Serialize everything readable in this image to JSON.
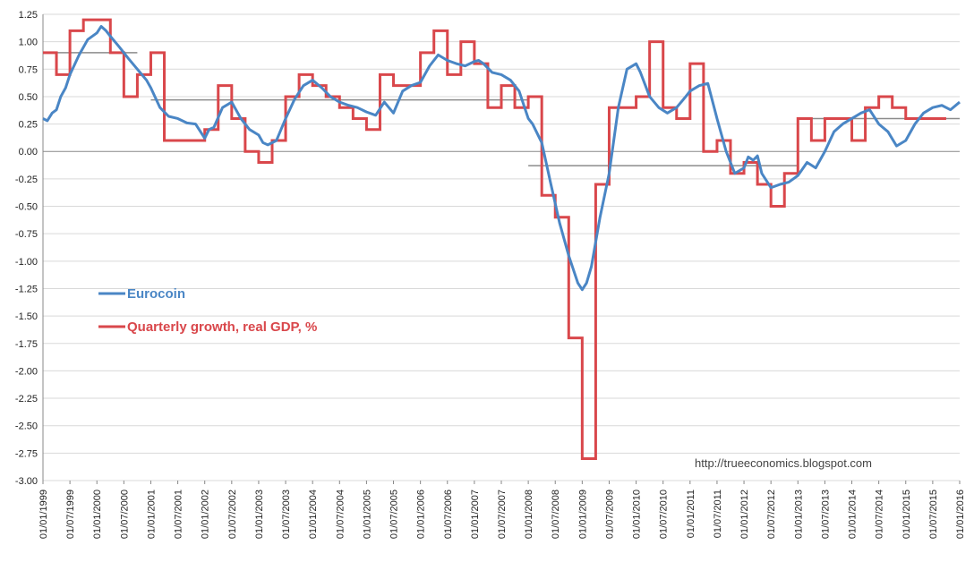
{
  "chart_data": {
    "type": "line",
    "title": "",
    "xlabel": "",
    "ylabel": "",
    "ylim": [
      -3.0,
      1.25
    ],
    "y_tick_step": 0.25,
    "x_range": [
      1999.0,
      2016.0
    ],
    "grid": "horizontal",
    "legend_position": "left-middle",
    "colors": {
      "eurocoin": "#4a86c5",
      "gdp": "#d9474b",
      "average": "#8c8c8c",
      "grid": "#d9d9d9"
    },
    "x_tick_labels": [
      "01/01/1999",
      "01/07/1999",
      "01/01/2000",
      "01/07/2000",
      "01/01/2001",
      "01/07/2001",
      "01/01/2002",
      "01/07/2002",
      "01/01/2003",
      "01/07/2003",
      "01/01/2004",
      "01/07/2004",
      "01/01/2005",
      "01/07/2005",
      "01/01/2006",
      "01/07/2006",
      "01/01/2007",
      "01/07/2007",
      "01/01/2008",
      "01/07/2008",
      "01/01/2009",
      "01/07/2009",
      "01/01/2010",
      "01/07/2010",
      "01/01/2011",
      "01/07/2011",
      "01/01/2012",
      "01/07/2012",
      "01/01/2013",
      "01/07/2013",
      "01/01/2014",
      "01/07/2014",
      "01/01/2015",
      "01/07/2015",
      "01/01/2016"
    ],
    "y_tick_labels": [
      "1.25",
      "1.00",
      "0.75",
      "0.50",
      "0.25",
      "0.00",
      "-0.25",
      "-0.50",
      "-0.75",
      "-1.00",
      "-1.25",
      "-1.50",
      "-1.75",
      "-2.00",
      "-2.25",
      "-2.50",
      "-2.75",
      "-3.00"
    ],
    "series": [
      {
        "name": "Eurocoin",
        "key": "eurocoin",
        "style": "line",
        "x": [
          1999.0,
          1999.08,
          1999.17,
          1999.25,
          1999.33,
          1999.42,
          1999.5,
          1999.67,
          1999.83,
          2000.0,
          2000.08,
          2000.17,
          2000.25,
          2000.42,
          2000.58,
          2000.75,
          2000.92,
          2001.0,
          2001.17,
          2001.33,
          2001.5,
          2001.67,
          2001.83,
          2002.0,
          2002.08,
          2002.17,
          2002.33,
          2002.5,
          2002.67,
          2002.83,
          2003.0,
          2003.08,
          2003.17,
          2003.33,
          2003.5,
          2003.67,
          2003.83,
          2004.0,
          2004.17,
          2004.33,
          2004.5,
          2004.67,
          2004.83,
          2005.0,
          2005.17,
          2005.33,
          2005.5,
          2005.67,
          2005.83,
          2006.0,
          2006.17,
          2006.33,
          2006.5,
          2006.67,
          2006.83,
          2007.0,
          2007.08,
          2007.17,
          2007.33,
          2007.5,
          2007.67,
          2007.83,
          2008.0,
          2008.08,
          2008.25,
          2008.42,
          2008.58,
          2008.75,
          2008.92,
          2009.0,
          2009.08,
          2009.17,
          2009.33,
          2009.5,
          2009.67,
          2009.83,
          2010.0,
          2010.08,
          2010.25,
          2010.42,
          2010.58,
          2010.75,
          2010.92,
          2011.0,
          2011.17,
          2011.33,
          2011.5,
          2011.67,
          2011.83,
          2012.0,
          2012.08,
          2012.17,
          2012.25,
          2012.33,
          2012.5,
          2012.67,
          2012.83,
          2013.0,
          2013.17,
          2013.33,
          2013.5,
          2013.67,
          2013.83,
          2014.0,
          2014.17,
          2014.33,
          2014.5,
          2014.67,
          2014.83,
          2015.0,
          2015.17,
          2015.33,
          2015.5,
          2015.67,
          2015.83,
          2016.0
        ],
        "y": [
          0.3,
          0.28,
          0.35,
          0.38,
          0.5,
          0.58,
          0.7,
          0.88,
          1.02,
          1.08,
          1.14,
          1.1,
          1.05,
          0.95,
          0.85,
          0.75,
          0.65,
          0.58,
          0.4,
          0.32,
          0.3,
          0.26,
          0.25,
          0.12,
          0.2,
          0.22,
          0.4,
          0.45,
          0.3,
          0.2,
          0.15,
          0.08,
          0.06,
          0.1,
          0.3,
          0.48,
          0.6,
          0.65,
          0.58,
          0.5,
          0.45,
          0.42,
          0.4,
          0.36,
          0.33,
          0.45,
          0.35,
          0.55,
          0.6,
          0.63,
          0.78,
          0.88,
          0.83,
          0.8,
          0.78,
          0.82,
          0.83,
          0.8,
          0.72,
          0.7,
          0.65,
          0.55,
          0.3,
          0.25,
          0.08,
          -0.3,
          -0.65,
          -0.95,
          -1.2,
          -1.26,
          -1.2,
          -1.05,
          -0.6,
          -0.2,
          0.4,
          0.75,
          0.8,
          0.72,
          0.5,
          0.4,
          0.35,
          0.4,
          0.5,
          0.55,
          0.6,
          0.62,
          0.3,
          0.0,
          -0.2,
          -0.15,
          -0.05,
          -0.08,
          -0.04,
          -0.2,
          -0.33,
          -0.3,
          -0.28,
          -0.22,
          -0.1,
          -0.15,
          0.0,
          0.18,
          0.25,
          0.3,
          0.35,
          0.38,
          0.25,
          0.18,
          0.05,
          0.1,
          0.25,
          0.35,
          0.4,
          0.42,
          0.38,
          0.45
        ]
      },
      {
        "name": "Quarterly growth, real GDP, %",
        "key": "gdp",
        "style": "step",
        "quarter_values": [
          0.9,
          0.7,
          1.1,
          1.2,
          1.2,
          0.9,
          0.5,
          0.7,
          0.9,
          0.1,
          0.1,
          0.1,
          0.2,
          0.6,
          0.3,
          0.0,
          -0.1,
          0.1,
          0.5,
          0.7,
          0.6,
          0.5,
          0.4,
          0.3,
          0.2,
          0.7,
          0.6,
          0.6,
          0.9,
          1.1,
          0.7,
          1.0,
          0.8,
          0.4,
          0.6,
          0.4,
          0.5,
          -0.4,
          -0.6,
          -1.7,
          -2.8,
          -0.3,
          0.4,
          0.4,
          0.5,
          1.0,
          0.4,
          0.3,
          0.8,
          0.0,
          0.1,
          -0.2,
          -0.1,
          -0.3,
          -0.5,
          -0.2,
          0.3,
          0.1,
          0.3,
          0.3,
          0.1,
          0.4,
          0.5,
          0.4,
          0.3,
          0.3,
          0.3
        ]
      },
      {
        "name": "Period average",
        "key": "average",
        "style": "segments",
        "segments": [
          {
            "x0": 1999.0,
            "x1": 2000.75,
            "y": 0.9
          },
          {
            "x0": 2001.0,
            "x1": 2008.0,
            "y": 0.47
          },
          {
            "x0": 2008.0,
            "x1": 2013.0,
            "y": -0.13
          },
          {
            "x0": 2013.0,
            "x1": 2016.0,
            "y": 0.3
          }
        ]
      }
    ],
    "legend": [
      {
        "label": "Eurocoin",
        "key": "eurocoin"
      },
      {
        "label": "Quarterly growth, real GDP, %",
        "key": "gdp"
      }
    ],
    "source_label": "http://trueeconomics.blogspot.com"
  }
}
